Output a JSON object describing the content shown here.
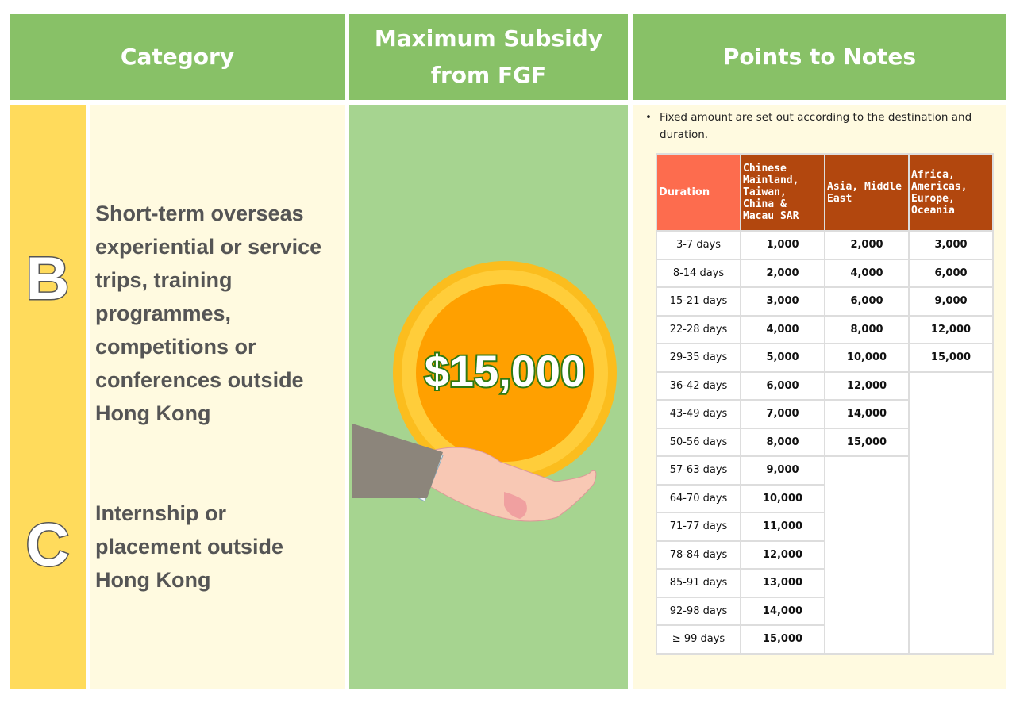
{
  "header": {
    "category": "Category",
    "max_subsidy": "Maximum Subsidy from FGF",
    "points": "Points to Notes"
  },
  "categories": [
    {
      "letter": "B",
      "text": "Short-term overseas experiential or service trips, training programmes, competitions or conferences outside Hong Kong"
    },
    {
      "letter": "C",
      "text": "Internship or placement outside Hong Kong"
    }
  ],
  "amount": "$15,000",
  "note": "Fixed amount are set out according to the destination and duration.",
  "table": {
    "columns": [
      "Duration",
      "Chinese Mainland, Taiwan, China & Macau SAR",
      "Asia, Middle East",
      "Africa, Americas, Europe, Oceania"
    ],
    "rows": [
      [
        "3-7 days",
        "1,000",
        "2,000",
        "3,000"
      ],
      [
        "8-14 days",
        "2,000",
        "4,000",
        "6,000"
      ],
      [
        "15-21 days",
        "3,000",
        "6,000",
        "9,000"
      ],
      [
        "22-28 days",
        "4,000",
        "8,000",
        "12,000"
      ],
      [
        "29-35 days",
        "5,000",
        "10,000",
        "15,000"
      ],
      [
        "36-42 days",
        "6,000",
        "12,000"
      ],
      [
        "43-49 days",
        "7,000",
        "14,000"
      ],
      [
        "50-56 days",
        "8,000",
        "15,000"
      ],
      [
        "57-63 days",
        "9,000"
      ],
      [
        "64-70 days",
        "10,000"
      ],
      [
        "71-77 days",
        "11,000"
      ],
      [
        "78-84 days",
        "12,000"
      ],
      [
        "85-91 days",
        "13,000"
      ],
      [
        "92-98 days",
        "14,000"
      ],
      [
        "≥ 99 days",
        "15,000"
      ]
    ]
  }
}
